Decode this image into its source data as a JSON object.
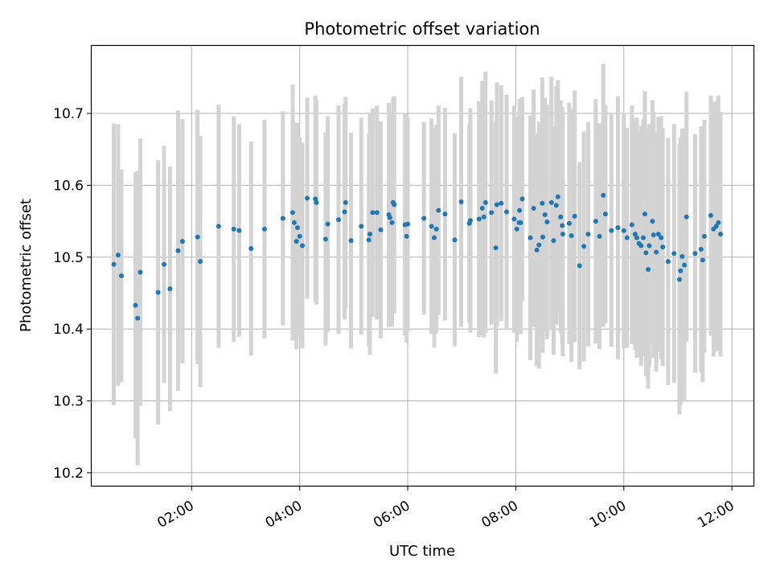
{
  "chart_data": {
    "type": "scatter",
    "title": "Photometric offset variation",
    "xlabel": "UTC time",
    "ylabel": "Photometric offset",
    "x_unit": "UTC time (hours)",
    "xlim": [
      0.15,
      12.4
    ],
    "ylim": [
      10.182,
      10.794
    ],
    "grid": true,
    "legend": "none",
    "x_ticks": [
      {
        "value": 2,
        "label": "02:00"
      },
      {
        "value": 4,
        "label": "04:00"
      },
      {
        "value": 6,
        "label": "06:00"
      },
      {
        "value": 8,
        "label": "08:00"
      },
      {
        "value": 10,
        "label": "10:00"
      },
      {
        "value": 12,
        "label": "12:00"
      }
    ],
    "y_ticks": [
      {
        "value": 10.2,
        "label": "10.2"
      },
      {
        "value": 10.3,
        "label": "10.3"
      },
      {
        "value": 10.4,
        "label": "10.4"
      },
      {
        "value": 10.5,
        "label": "10.5"
      },
      {
        "value": 10.6,
        "label": "10.6"
      },
      {
        "value": 10.7,
        "label": "10.7"
      }
    ],
    "colors": {
      "points": "#1f77b4",
      "error_bars": "#d3d3d3",
      "grid": "#b0b0b0"
    },
    "series": [
      {
        "x": [
          0.56,
          0.64,
          0.7,
          0.96,
          1.0,
          1.05,
          1.38,
          1.49,
          1.6,
          1.75,
          1.83,
          2.11,
          2.16,
          2.5,
          2.78,
          2.88,
          3.1,
          3.35,
          3.69,
          3.87,
          3.9,
          3.94,
          3.96,
          4.0,
          4.05,
          4.14,
          4.29,
          4.31,
          4.48,
          4.52,
          4.72,
          4.83,
          4.85,
          4.95,
          5.14,
          5.28,
          5.3,
          5.35,
          5.43,
          5.5,
          5.65,
          5.67,
          5.71,
          5.73,
          5.75,
          5.95,
          5.98,
          6.0,
          6.3,
          6.44,
          6.49,
          6.53,
          6.57,
          6.69,
          6.87,
          6.99,
          7.14,
          7.16,
          7.32,
          7.38,
          7.41,
          7.44,
          7.55,
          7.63,
          7.65,
          7.73,
          7.83,
          7.97,
          8.02,
          8.06,
          8.07,
          8.09,
          8.12,
          8.27,
          8.33,
          8.39,
          8.43,
          8.49,
          8.5,
          8.54,
          8.58,
          8.66,
          8.7,
          8.75,
          8.78,
          8.83,
          8.86,
          8.87,
          8.99,
          9.03,
          9.09,
          9.18,
          9.26,
          9.34,
          9.48,
          9.55,
          9.62,
          9.66,
          9.77,
          9.89,
          10.0,
          10.06,
          10.15,
          10.21,
          10.24,
          10.28,
          10.32,
          10.36,
          10.39,
          10.41,
          10.45,
          10.47,
          10.53,
          10.55,
          10.6,
          10.64,
          10.69,
          10.72,
          10.82,
          10.93,
          11.03,
          11.05,
          11.08,
          11.12,
          11.16,
          11.32,
          11.43,
          11.46,
          11.49,
          11.61,
          11.66,
          11.71,
          11.75,
          11.79
        ],
        "y": [
          10.49,
          10.503,
          10.474,
          10.433,
          10.415,
          10.479,
          10.451,
          10.49,
          10.456,
          10.509,
          10.522,
          10.528,
          10.494,
          10.543,
          10.539,
          10.537,
          10.512,
          10.539,
          10.554,
          10.562,
          10.548,
          10.522,
          10.541,
          10.529,
          10.516,
          10.582,
          10.581,
          10.576,
          10.525,
          10.546,
          10.552,
          10.563,
          10.576,
          10.523,
          10.543,
          10.524,
          10.532,
          10.562,
          10.562,
          10.538,
          10.559,
          10.555,
          10.548,
          10.576,
          10.573,
          10.545,
          10.529,
          10.546,
          10.554,
          10.543,
          10.527,
          10.539,
          10.565,
          10.56,
          10.524,
          10.577,
          10.547,
          10.551,
          10.553,
          10.568,
          10.556,
          10.576,
          10.562,
          10.513,
          10.573,
          10.575,
          10.563,
          10.553,
          10.539,
          10.548,
          10.565,
          10.548,
          10.581,
          10.527,
          10.568,
          10.51,
          10.517,
          10.575,
          10.528,
          10.559,
          10.549,
          10.576,
          10.523,
          10.572,
          10.584,
          10.556,
          10.544,
          10.532,
          10.547,
          10.53,
          10.557,
          10.488,
          10.515,
          10.532,
          10.55,
          10.529,
          10.586,
          10.56,
          10.537,
          10.541,
          10.537,
          10.527,
          10.545,
          10.532,
          10.527,
          10.519,
          10.516,
          10.527,
          10.56,
          10.506,
          10.483,
          10.516,
          10.55,
          10.531,
          10.507,
          10.532,
          10.527,
          10.514,
          10.494,
          10.505,
          10.469,
          10.481,
          10.501,
          10.489,
          10.556,
          10.505,
          10.511,
          10.496,
          10.529,
          10.558,
          10.539,
          10.543,
          10.548,
          10.532
        ],
        "err": [
          0.196,
          0.182,
          0.148,
          0.185,
          0.205,
          0.186,
          0.184,
          0.165,
          0.17,
          0.195,
          0.17,
          0.177,
          0.175,
          0.169,
          0.157,
          0.148,
          0.149,
          0.152,
          0.149,
          0.178,
          0.14,
          0.15,
          0.146,
          0.138,
          0.143,
          0.14,
          0.144,
          0.142,
          0.148,
          0.15,
          0.159,
          0.15,
          0.147,
          0.15,
          0.151,
          0.148,
          0.168,
          0.145,
          0.149,
          0.151,
          0.156,
          0.144,
          0.145,
          0.147,
          0.151,
          0.154,
          0.148,
          0.149,
          0.134,
          0.15,
          0.153,
          0.145,
          0.146,
          0.148,
          0.148,
          0.174,
          0.138,
          0.156,
          0.164,
          0.177,
          0.168,
          0.182,
          0.156,
          0.175,
          0.17,
          0.164,
          0.163,
          0.158,
          0.157,
          0.15,
          0.155,
          0.155,
          0.142,
          0.17,
          0.165,
          0.162,
          0.172,
          0.175,
          0.161,
          0.163,
          0.163,
          0.175,
          0.159,
          0.166,
          0.162,
          0.162,
          0.165,
          0.17,
          0.168,
          0.176,
          0.175,
          0.144,
          0.16,
          0.156,
          0.17,
          0.157,
          0.183,
          0.152,
          0.162,
          0.183,
          0.164,
          0.153,
          0.166,
          0.161,
          0.167,
          0.157,
          0.167,
          0.165,
          0.171,
          0.172,
          0.166,
          0.169,
          0.168,
          0.171,
          0.166,
          0.163,
          0.169,
          0.166,
          0.172,
          0.18,
          0.188,
          0.186,
          0.178,
          0.19,
          0.174,
          0.166,
          0.171,
          0.17,
          0.162,
          0.167,
          0.177,
          0.174,
          0.177,
          0.17
        ]
      }
    ]
  }
}
